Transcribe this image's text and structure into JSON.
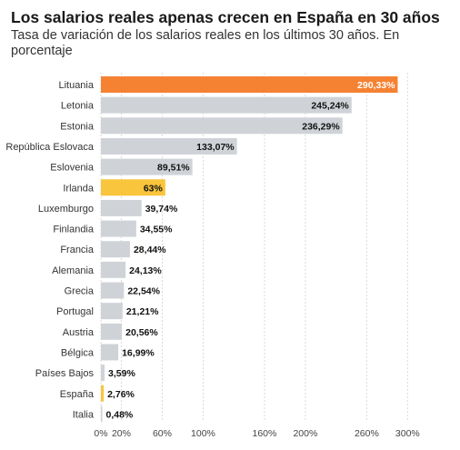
{
  "title": "Los salarios reales apenas crecen en España en 30 años",
  "subtitle": "Tasa de variación de los salarios reales en los últimos 30 años. En porcentaje",
  "colors": {
    "default": "#cfd3d8",
    "highlight_max": "#f58233",
    "highlight_es": "#f9c53c",
    "grid": "#d9d9d9"
  },
  "chart_data": {
    "type": "bar",
    "orientation": "horizontal",
    "title": "Los salarios reales apenas crecen en España en 30 años",
    "subtitle": "Tasa de variación de los salarios reales en los últimos 30 años. En porcentaje",
    "categories": [
      "Lituania",
      "Letonia",
      "Estonia",
      "República Eslovaca",
      "Eslovenia",
      "Irlanda",
      "Luxemburgo",
      "Finlandia",
      "Francia",
      "Alemania",
      "Grecia",
      "Portugal",
      "Austria",
      "Bélgica",
      "Países Bajos",
      "España",
      "Italia"
    ],
    "values": [
      290.33,
      245.24,
      236.29,
      133.07,
      89.51,
      63,
      39.74,
      34.55,
      28.44,
      24.13,
      22.54,
      21.21,
      20.56,
      16.99,
      3.59,
      2.76,
      0.48
    ],
    "value_labels": [
      "290,33%",
      "245,24%",
      "236,29%",
      "133,07%",
      "89,51%",
      "63%",
      "39,74%",
      "34,55%",
      "28,44%",
      "24,13%",
      "22,54%",
      "21,21%",
      "20,56%",
      "16,99%",
      "3,59%",
      "2,76%",
      "0,48%"
    ],
    "bar_colors": [
      "#f58233",
      "#cfd3d8",
      "#cfd3d8",
      "#cfd3d8",
      "#cfd3d8",
      "#f9c53c",
      "#cfd3d8",
      "#cfd3d8",
      "#cfd3d8",
      "#cfd3d8",
      "#cfd3d8",
      "#cfd3d8",
      "#cfd3d8",
      "#cfd3d8",
      "#cfd3d8",
      "#f9c53c",
      "#cfd3d8"
    ],
    "xlim": [
      0,
      300
    ],
    "xticks": [
      0,
      20,
      60,
      100,
      160,
      200,
      260,
      300
    ],
    "xtick_labels": [
      "0%",
      "20%",
      "60%",
      "100%",
      "160%",
      "200%",
      "260%",
      "300%"
    ],
    "grid": true,
    "legend": "none"
  }
}
